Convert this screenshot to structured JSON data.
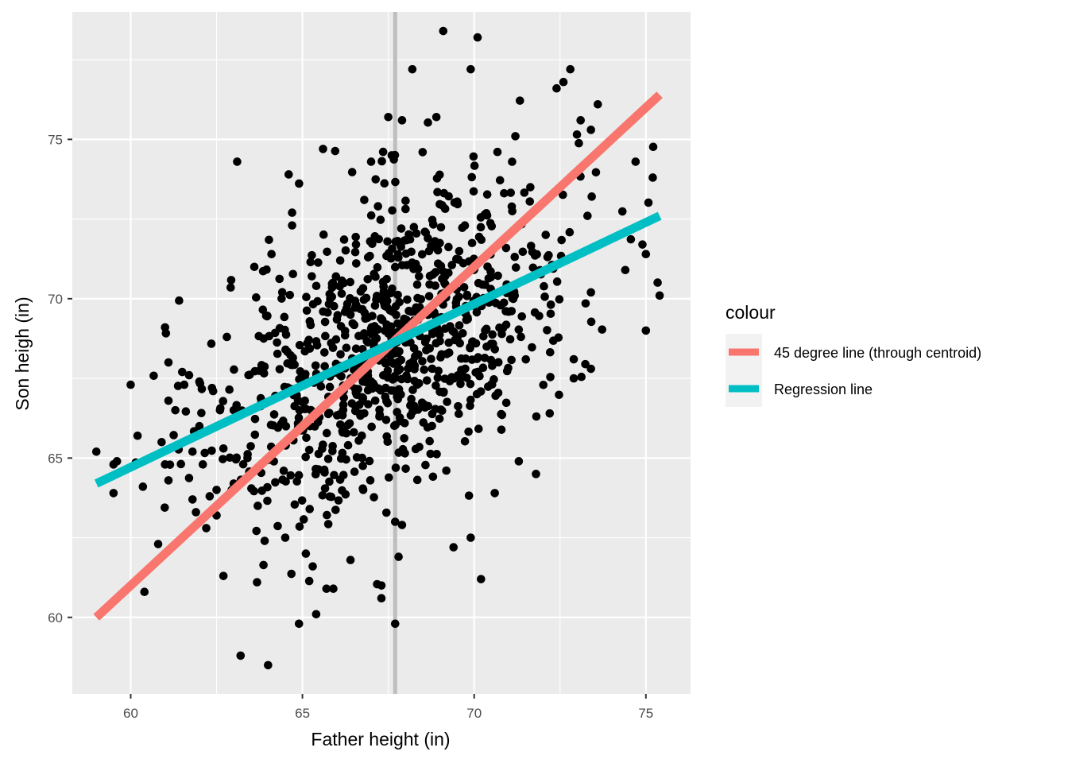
{
  "chart_data": {
    "type": "scatter",
    "xlabel": "Father height (in)",
    "ylabel": "Son heigh (in)",
    "xlim": [
      58.3,
      76.3
    ],
    "ylim": [
      57.6,
      79.0
    ],
    "x_ticks": [
      60,
      65,
      70,
      75
    ],
    "y_ticks": [
      60,
      65,
      70,
      75
    ],
    "grid": true,
    "background": "#ebebeb",
    "vertical_reference_line": {
      "x": 67.7,
      "color": "#bebebe"
    },
    "legend": {
      "title": "colour",
      "placement": "right",
      "entries": [
        {
          "label": "45 degree line (through centroid)",
          "color": "#f8766d"
        },
        {
          "label": "Regression line",
          "color": "#00bfc4"
        }
      ]
    },
    "lines": [
      {
        "name": "45 degree line (through centroid)",
        "color": "#f8766d",
        "x": [
          59.0,
          75.4
        ],
        "y": [
          60.0,
          76.4
        ]
      },
      {
        "name": "Regression line",
        "color": "#00bfc4",
        "x": [
          59.0,
          75.4
        ],
        "y": [
          64.2,
          72.6
        ]
      }
    ],
    "points": {
      "color": "#000000",
      "highlighted": [
        [
          59.0,
          65.2
        ],
        [
          59.5,
          64.8
        ],
        [
          59.6,
          64.9
        ],
        [
          59.5,
          63.9
        ],
        [
          60.0,
          67.3
        ],
        [
          60.2,
          65.7
        ],
        [
          60.4,
          60.8
        ],
        [
          60.8,
          62.3
        ],
        [
          60.9,
          65.5
        ],
        [
          61.0,
          64.8
        ],
        [
          61.0,
          69.1
        ],
        [
          61.1,
          68.0
        ],
        [
          61.1,
          66.8
        ],
        [
          61.1,
          64.3
        ],
        [
          61.3,
          66.5
        ],
        [
          61.5,
          67.7
        ],
        [
          61.7,
          67.6
        ],
        [
          61.8,
          65.2
        ],
        [
          61.8,
          63.7
        ],
        [
          61.9,
          63.3
        ],
        [
          62.0,
          66.0
        ],
        [
          62.0,
          67.4
        ],
        [
          62.1,
          64.8
        ],
        [
          62.2,
          62.8
        ],
        [
          62.3,
          63.8
        ],
        [
          62.4,
          67.1
        ],
        [
          62.5,
          63.2
        ],
        [
          62.5,
          64.0
        ],
        [
          62.6,
          66.5
        ],
        [
          62.7,
          61.3
        ],
        [
          62.7,
          65.3
        ],
        [
          62.8,
          68.8
        ],
        [
          63.0,
          66.5
        ],
        [
          63.0,
          64.2
        ],
        [
          63.1,
          74.3
        ],
        [
          63.2,
          58.8
        ],
        [
          63.4,
          65.0
        ],
        [
          63.6,
          71.0
        ],
        [
          63.7,
          63.5
        ],
        [
          63.9,
          62.4
        ],
        [
          64.0,
          58.5
        ],
        [
          64.1,
          71.4
        ],
        [
          64.5,
          62.5
        ],
        [
          64.6,
          73.9
        ],
        [
          64.7,
          72.7
        ],
        [
          64.7,
          72.3
        ],
        [
          64.9,
          59.8
        ],
        [
          65.1,
          62.0
        ],
        [
          65.3,
          61.6
        ],
        [
          65.4,
          60.1
        ],
        [
          65.6,
          74.7
        ],
        [
          65.7,
          60.9
        ],
        [
          65.9,
          60.9
        ],
        [
          66.1,
          71.2
        ],
        [
          66.4,
          61.8
        ],
        [
          66.8,
          73.1
        ],
        [
          67.0,
          74.3
        ],
        [
          67.2,
          72.9
        ],
        [
          67.3,
          60.6
        ],
        [
          67.3,
          61.0
        ],
        [
          67.5,
          75.7
        ],
        [
          67.6,
          74.5
        ],
        [
          67.7,
          59.8
        ],
        [
          67.7,
          63.0
        ],
        [
          67.8,
          61.9
        ],
        [
          67.9,
          62.9
        ],
        [
          67.9,
          75.6
        ],
        [
          68.2,
          77.2
        ],
        [
          68.5,
          74.6
        ],
        [
          68.9,
          75.7
        ],
        [
          69.1,
          78.4
        ],
        [
          69.4,
          62.2
        ],
        [
          69.9,
          77.2
        ],
        [
          69.9,
          62.5
        ],
        [
          70.1,
          78.2
        ],
        [
          70.2,
          61.2
        ],
        [
          70.6,
          63.9
        ],
        [
          71.2,
          75.1
        ],
        [
          71.3,
          64.9
        ],
        [
          71.8,
          64.5
        ],
        [
          72.2,
          66.4
        ],
        [
          72.4,
          76.6
        ],
        [
          72.6,
          76.8
        ],
        [
          72.8,
          77.2
        ],
        [
          73.1,
          75.6
        ],
        [
          73.4,
          75.3
        ],
        [
          73.6,
          76.1
        ],
        [
          73.3,
          72.6
        ],
        [
          73.4,
          67.8
        ],
        [
          73.4,
          70.2
        ],
        [
          74.4,
          70.9
        ],
        [
          74.7,
          74.3
        ],
        [
          74.9,
          71.7
        ],
        [
          75.0,
          71.4
        ],
        [
          75.0,
          69.0
        ],
        [
          75.2,
          73.8
        ],
        [
          75.4,
          70.1
        ],
        [
          72.9,
          67.5
        ],
        [
          72.9,
          68.1
        ]
      ],
      "cluster": {
        "count": 900,
        "mean_x": 67.7,
        "mean_y": 68.7,
        "sd_x": 2.6,
        "sd_y": 2.6,
        "correlation": 0.5
      }
    }
  }
}
